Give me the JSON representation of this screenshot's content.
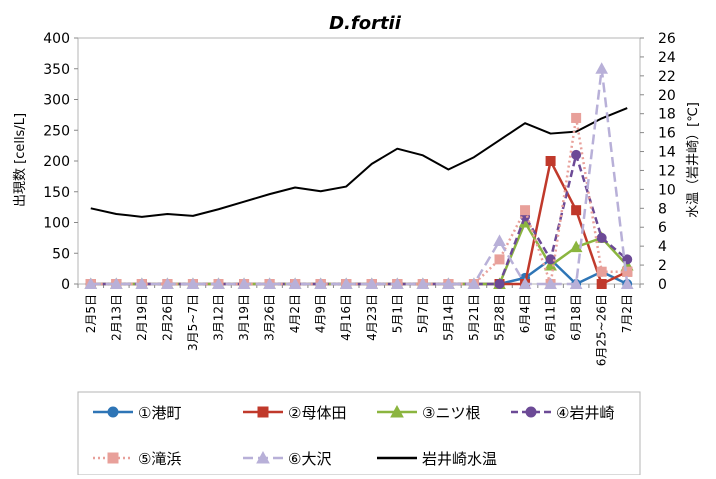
{
  "chart_data": {
    "type": "line",
    "title": "D.fortii",
    "ylabel": "出現数 [cells/L]",
    "y2label": "水温（岩井崎）[℃]",
    "ylim": [
      0,
      400
    ],
    "y_ticks": [
      0,
      50,
      100,
      150,
      200,
      250,
      300,
      350,
      400
    ],
    "y2lim": [
      0,
      26
    ],
    "y2_ticks": [
      0,
      2,
      4,
      6,
      8,
      10,
      12,
      14,
      16,
      18,
      20,
      22,
      24,
      26
    ],
    "grid": false,
    "legend_position": "bottom",
    "categories": [
      "2月5日",
      "2月13日",
      "2月19日",
      "2月26日",
      "3月5~7日",
      "3月12日",
      "3月19日",
      "3月26日",
      "4月2日",
      "4月9日",
      "4月16日",
      "4月23日",
      "5月1日",
      "5月7日",
      "5月14日",
      "5月21日",
      "5月28日",
      "6月4日",
      "6月11日",
      "6月18日",
      "6月25~26日",
      "7月2日"
    ],
    "series": [
      {
        "name": "①港町",
        "axis": "left",
        "color": "#2e75b6",
        "marker": "circle",
        "dash": "solid",
        "values": [
          0,
          0,
          0,
          0,
          0,
          0,
          0,
          0,
          0,
          0,
          0,
          0,
          0,
          0,
          0,
          0,
          0,
          10,
          40,
          0,
          20,
          0
        ]
      },
      {
        "name": "②母体田",
        "axis": "left",
        "color": "#c0392b",
        "marker": "square",
        "dash": "solid",
        "values": [
          0,
          0,
          0,
          0,
          0,
          0,
          0,
          0,
          0,
          0,
          0,
          0,
          0,
          0,
          0,
          0,
          0,
          0,
          200,
          120,
          0,
          20
        ]
      },
      {
        "name": "③ニツ根",
        "axis": "left",
        "color": "#8bb53f",
        "marker": "triangle",
        "dash": "solid",
        "values": [
          0,
          0,
          0,
          0,
          0,
          0,
          0,
          0,
          0,
          0,
          0,
          0,
          0,
          0,
          0,
          0,
          0,
          100,
          30,
          60,
          75,
          30
        ]
      },
      {
        "name": "④岩井崎",
        "axis": "left",
        "color": "#6c4a96",
        "marker": "circle",
        "dash": "dash",
        "values": [
          0,
          0,
          0,
          0,
          0,
          0,
          0,
          0,
          0,
          0,
          0,
          0,
          0,
          0,
          0,
          0,
          0,
          110,
          40,
          210,
          75,
          40
        ]
      },
      {
        "name": "⑤滝浜",
        "axis": "left",
        "color": "#e8a09a",
        "marker": "square",
        "dash": "dot",
        "values": [
          0,
          0,
          0,
          0,
          0,
          0,
          0,
          0,
          0,
          0,
          0,
          0,
          0,
          0,
          0,
          0,
          40,
          120,
          0,
          270,
          20,
          20
        ]
      },
      {
        "name": "⑥大沢",
        "axis": "left",
        "color": "#b8b0d8",
        "marker": "triangle",
        "dash": "longdash",
        "values": [
          0,
          0,
          0,
          0,
          0,
          0,
          0,
          0,
          0,
          0,
          0,
          0,
          0,
          0,
          0,
          0,
          70,
          0,
          0,
          0,
          350,
          0
        ]
      },
      {
        "name": "岩井崎水温",
        "axis": "right",
        "color": "#000000",
        "marker": "none",
        "dash": "solid",
        "values": [
          8.0,
          7.4,
          7.1,
          7.4,
          7.2,
          7.9,
          8.7,
          9.5,
          10.2,
          9.8,
          10.3,
          12.7,
          14.3,
          13.6,
          12.1,
          13.4,
          15.2,
          17.0,
          15.9,
          16.1,
          17.5,
          18.6
        ]
      }
    ]
  }
}
